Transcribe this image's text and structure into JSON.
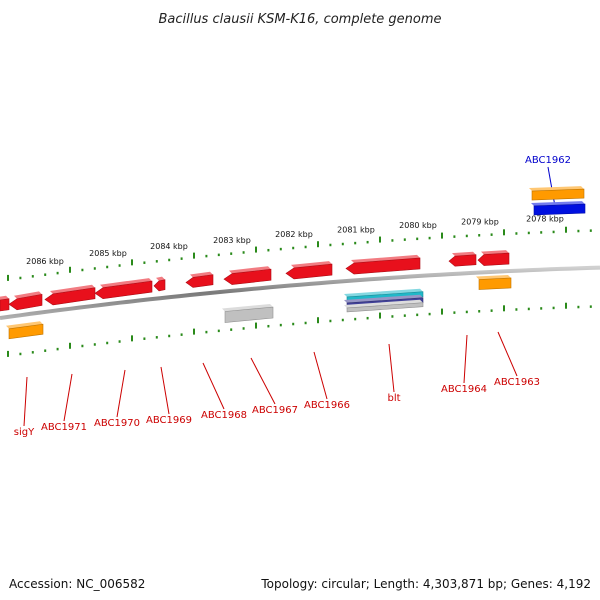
{
  "title": "Bacillus clausii KSM-K16, complete genome",
  "accession_text": "Accession: NC_006582",
  "summary_text": "Topology: circular; Length: 4,303,871 bp; Genes: 4,192",
  "colors": {
    "gene_red": "#e8101c",
    "gene_orange": "#ff9a00",
    "gene_blue": "#0010e0",
    "gene_gray": "#c0c0c0",
    "gene_teal": "#20b8c8",
    "gene_purple": "#404098",
    "label_red": "#cc0000",
    "label_blue": "#0000cc",
    "tick_green": "#2a8a1a",
    "backbone": "#8a8a8a"
  },
  "scale_labels": [
    "2078 kbp",
    "2079 kbp",
    "2080 kbp",
    "2081 kbp",
    "2082 kbp",
    "2083 kbp",
    "2084 kbp",
    "2085 kbp",
    "2086 kbp"
  ],
  "gene_labels": [
    {
      "text": "ABC1962",
      "color": "blue"
    },
    {
      "text": "ABC1963",
      "color": "red"
    },
    {
      "text": "ABC1964",
      "color": "red"
    },
    {
      "text": "blt",
      "color": "red"
    },
    {
      "text": "ABC1966",
      "color": "red"
    },
    {
      "text": "ABC1967",
      "color": "red"
    },
    {
      "text": "ABC1968",
      "color": "red"
    },
    {
      "text": "ABC1969",
      "color": "red"
    },
    {
      "text": "ABC1970",
      "color": "red"
    },
    {
      "text": "ABC1971",
      "color": "red"
    },
    {
      "text": "sigY",
      "color": "red"
    }
  ]
}
